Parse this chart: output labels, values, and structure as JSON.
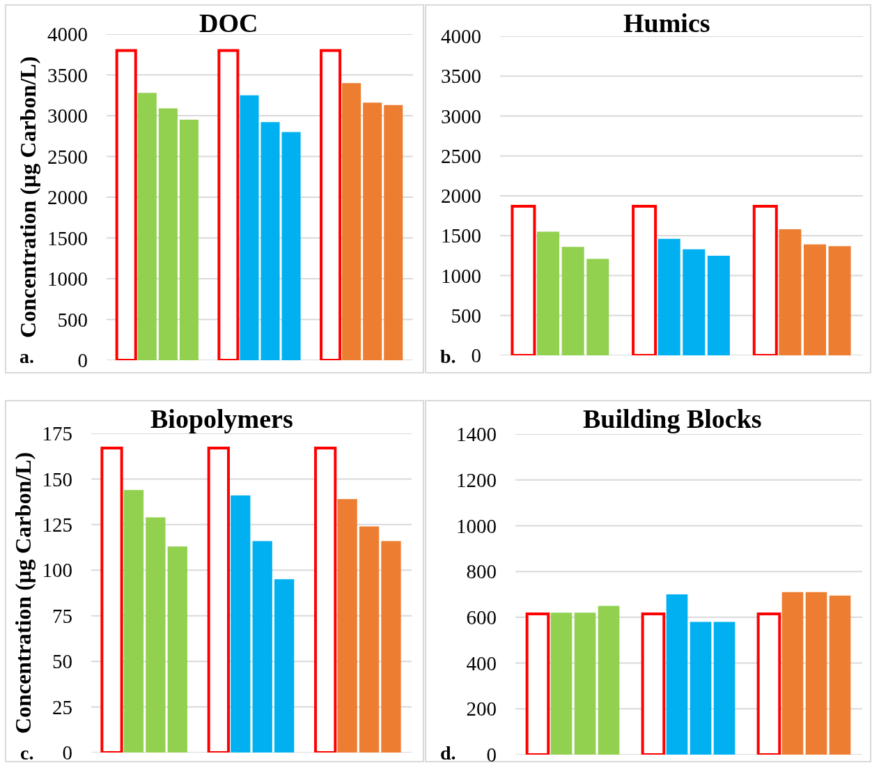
{
  "chart_data": [
    {
      "type": "bar",
      "title": "DOC",
      "ylabel": "Concentration (µg Carbon/L)",
      "categories": [
        null,
        null,
        null
      ],
      "series": [
        {
          "color": "#ff0000",
          "colors": [
            "#ffffff",
            "#ffffff",
            "#ffffff"
          ],
          "values": [
            3800,
            3800,
            3800
          ]
        },
        {
          "colors": [
            "#92d050",
            "#00b0f0",
            "#ed7d31"
          ],
          "values": [
            3280,
            3250,
            3400
          ]
        },
        {
          "colors": [
            "#92d050",
            "#00b0f0",
            "#ed7d31"
          ],
          "values": [
            3090,
            2920,
            3160
          ]
        },
        {
          "colors": [
            "#92d050",
            "#00b0f0",
            "#ed7d31"
          ],
          "values": [
            2950,
            2800,
            3130
          ]
        }
      ],
      "ylim": [
        0,
        4000
      ],
      "yticks": [
        0,
        500,
        1000,
        1500,
        2000,
        2500,
        3000,
        3500,
        4000
      ],
      "grid": "y",
      "tick_labels": "y",
      "annotations": [
        "a."
      ]
    },
    {
      "type": "bar",
      "title": "Humics",
      "categories": [
        null,
        null,
        null
      ],
      "series": [
        {
          "color": "#ff0000",
          "colors": [
            "#ffffff",
            "#ffffff",
            "#ffffff"
          ],
          "values": [
            1870,
            1870,
            1870
          ]
        },
        {
          "colors": [
            "#92d050",
            "#00b0f0",
            "#ed7d31"
          ],
          "values": [
            1550,
            1460,
            1580
          ]
        },
        {
          "colors": [
            "#92d050",
            "#00b0f0",
            "#ed7d31"
          ],
          "values": [
            1360,
            1330,
            1390
          ]
        },
        {
          "colors": [
            "#92d050",
            "#00b0f0",
            "#ed7d31"
          ],
          "values": [
            1210,
            1250,
            1370
          ]
        }
      ],
      "ylim": [
        0,
        4000
      ],
      "yticks": [
        0,
        500,
        1000,
        1500,
        2000,
        2500,
        3000,
        3500,
        4000
      ],
      "grid": "y",
      "tick_labels": "y",
      "annotations": [
        "b."
      ]
    },
    {
      "type": "bar",
      "title": "Biopolymers",
      "ylabel": "Concentration (µg Carbon/L)",
      "categories": [
        null,
        null,
        null
      ],
      "series": [
        {
          "color": "#ff0000",
          "colors": [
            "#ffffff",
            "#ffffff",
            "#ffffff"
          ],
          "values": [
            167,
            167,
            167
          ]
        },
        {
          "colors": [
            "#92d050",
            "#00b0f0",
            "#ed7d31"
          ],
          "values": [
            144,
            141,
            139
          ]
        },
        {
          "colors": [
            "#92d050",
            "#00b0f0",
            "#ed7d31"
          ],
          "values": [
            129,
            116,
            124
          ]
        },
        {
          "colors": [
            "#92d050",
            "#00b0f0",
            "#ed7d31"
          ],
          "values": [
            113,
            95,
            116
          ]
        }
      ],
      "ylim": [
        0,
        175
      ],
      "yticks": [
        0,
        25,
        50,
        75,
        100,
        125,
        150,
        175
      ],
      "grid": "y",
      "tick_labels": "y",
      "annotations": [
        "c."
      ]
    },
    {
      "type": "bar",
      "title": "Building Blocks",
      "categories": [
        null,
        null,
        null
      ],
      "series": [
        {
          "color": "#ff0000",
          "colors": [
            "#ffffff",
            "#ffffff",
            "#ffffff"
          ],
          "values": [
            615,
            615,
            615
          ]
        },
        {
          "colors": [
            "#92d050",
            "#00b0f0",
            "#ed7d31"
          ],
          "values": [
            620,
            700,
            710
          ]
        },
        {
          "colors": [
            "#92d050",
            "#00b0f0",
            "#ed7d31"
          ],
          "values": [
            620,
            580,
            710
          ]
        },
        {
          "colors": [
            "#92d050",
            "#00b0f0",
            "#ed7d31"
          ],
          "values": [
            650,
            580,
            695
          ]
        }
      ],
      "ylim": [
        0,
        1400
      ],
      "yticks": [
        0,
        200,
        400,
        600,
        800,
        1000,
        1200,
        1400
      ],
      "grid": "y",
      "tick_labels": "y",
      "annotations": [
        "d."
      ]
    }
  ]
}
